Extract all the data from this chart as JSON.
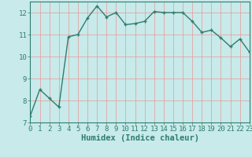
{
  "x": [
    0,
    1,
    2,
    3,
    4,
    5,
    6,
    7,
    8,
    9,
    10,
    11,
    12,
    13,
    14,
    15,
    16,
    17,
    18,
    19,
    20,
    21,
    22,
    23
  ],
  "y": [
    7.3,
    8.5,
    8.1,
    7.7,
    10.9,
    11.0,
    11.75,
    12.3,
    11.8,
    12.0,
    11.45,
    11.5,
    11.6,
    12.05,
    12.0,
    12.0,
    12.0,
    11.6,
    11.1,
    11.2,
    10.85,
    10.45,
    10.8,
    10.2
  ],
  "line_color": "#2e7d6e",
  "marker": "+",
  "marker_size": 3,
  "marker_edge_width": 1.0,
  "bg_color": "#c8eaea",
  "grid_color": "#e89898",
  "xlabel": "Humidex (Indice chaleur)",
  "ylim": [
    7,
    12.5
  ],
  "xlim": [
    0,
    23
  ],
  "yticks": [
    7,
    8,
    9,
    10,
    11,
    12
  ],
  "xticks": [
    0,
    1,
    2,
    3,
    4,
    5,
    6,
    7,
    8,
    9,
    10,
    11,
    12,
    13,
    14,
    15,
    16,
    17,
    18,
    19,
    20,
    21,
    22,
    23
  ],
  "line_width": 1.0,
  "tick_fontsize": 6.5,
  "xlabel_fontsize": 7.5,
  "xlabel_color": "#2e7d6e"
}
